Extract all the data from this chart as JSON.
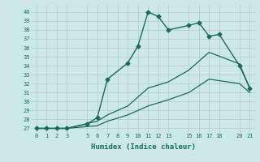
{
  "xlabel": "Humidex (Indice chaleur)",
  "bg_color": "#cde8e8",
  "grid_color": "#b0cccc",
  "line_color": "#1a6b5a",
  "xticks": [
    0,
    1,
    2,
    3,
    5,
    6,
    7,
    8,
    9,
    10,
    11,
    12,
    13,
    15,
    16,
    17,
    18,
    20,
    21
  ],
  "yticks": [
    27,
    28,
    29,
    30,
    31,
    32,
    33,
    34,
    35,
    36,
    37,
    38,
    39,
    40
  ],
  "xlim": [
    -0.5,
    21.5
  ],
  "ylim": [
    26.5,
    40.8
  ],
  "series": [
    {
      "x": [
        0,
        1,
        2,
        3,
        5,
        6,
        7,
        9,
        10,
        11,
        12,
        13,
        15,
        16,
        17,
        18,
        20,
        21
      ],
      "y": [
        27,
        27,
        27,
        27,
        27.5,
        28.2,
        32.5,
        34.3,
        36.2,
        40,
        39.5,
        38,
        38.5,
        38.8,
        37.3,
        37.5,
        34.0,
        31.5
      ],
      "marker": "D",
      "markersize": 2.5,
      "linewidth": 1.0
    },
    {
      "x": [
        0,
        1,
        2,
        3,
        6,
        7,
        9,
        11,
        13,
        15,
        17,
        20,
        21
      ],
      "y": [
        27,
        27,
        27,
        27,
        27.8,
        28.5,
        29.5,
        31.5,
        32.2,
        33.5,
        35.5,
        34.2,
        31.5
      ],
      "marker": null,
      "linewidth": 0.9
    },
    {
      "x": [
        0,
        1,
        2,
        3,
        6,
        7,
        9,
        11,
        13,
        15,
        17,
        20,
        21
      ],
      "y": [
        27,
        27,
        27,
        27,
        27.3,
        27.8,
        28.5,
        29.5,
        30.2,
        31.0,
        32.5,
        32.0,
        31.0
      ],
      "marker": null,
      "linewidth": 0.9
    }
  ]
}
